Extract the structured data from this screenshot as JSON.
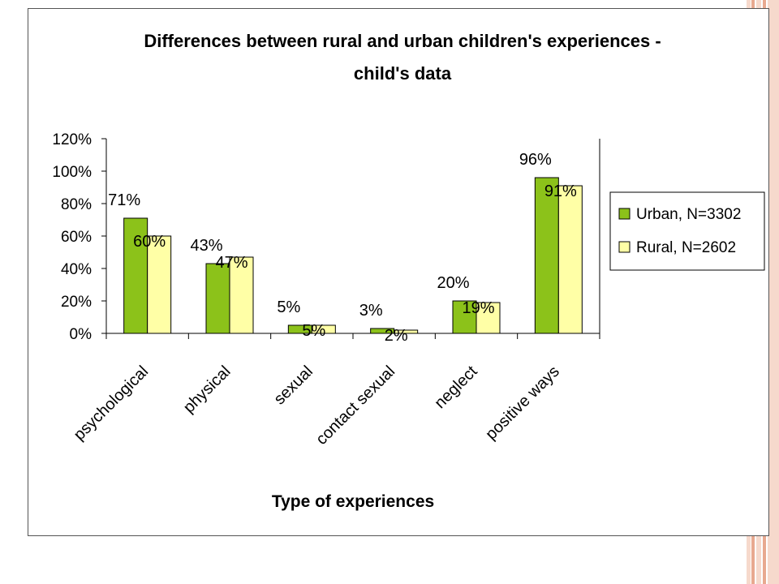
{
  "colors": {
    "stripe_light": "#f6d9cc",
    "stripe_dark": "#e8a990",
    "urban": "#8cc21a",
    "rural": "#ffffa6",
    "bar_stroke": "#000000"
  },
  "chart_data": {
    "type": "bar",
    "title": "Differences between rural and urban children's experiences -",
    "subtitle": "child's data",
    "xlabel": "Type of experiences",
    "ylabel": "",
    "categories": [
      "psychological",
      "physical",
      "sexual",
      "contact sexual",
      "neglect",
      "positive ways"
    ],
    "series": [
      {
        "name": "Urban, N=3302",
        "values": [
          71,
          43,
          5,
          3,
          20,
          96
        ],
        "labels": [
          "71%",
          "43%",
          "5%",
          "3%",
          "20%",
          "96%"
        ]
      },
      {
        "name": "Rural, N=2602",
        "values": [
          60,
          47,
          5,
          2,
          19,
          91
        ],
        "labels": [
          "60%",
          "47%",
          "5%",
          "2%",
          "19%",
          "91%"
        ]
      }
    ],
    "ylim": [
      0,
      120
    ],
    "yticks": [
      "0%",
      "20%",
      "40%",
      "60%",
      "80%",
      "100%",
      "120%"
    ],
    "grid": false,
    "legend": "right"
  }
}
